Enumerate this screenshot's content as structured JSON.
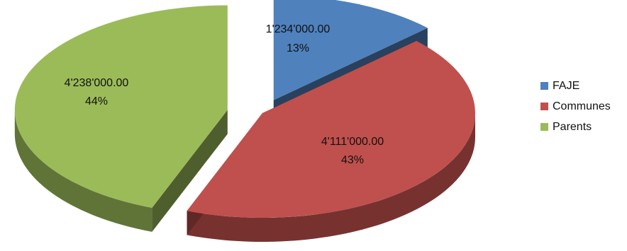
{
  "chart_data": {
    "type": "pie",
    "title": "",
    "legend_position": "right",
    "categories": [
      "FAJE",
      "Communes",
      "Parents"
    ],
    "values": [
      1234000,
      4111000,
      4238000
    ],
    "value_labels": [
      "1'234'000.00",
      "4'111'000.00",
      "4'238'000.00"
    ],
    "percent_labels": [
      "13%",
      "43%",
      "44%"
    ],
    "colors": {
      "FAJE": "#4F81BD",
      "Communes": "#C0504D",
      "Parents": "#9BBB59"
    },
    "exploded": true,
    "three_d": true
  }
}
